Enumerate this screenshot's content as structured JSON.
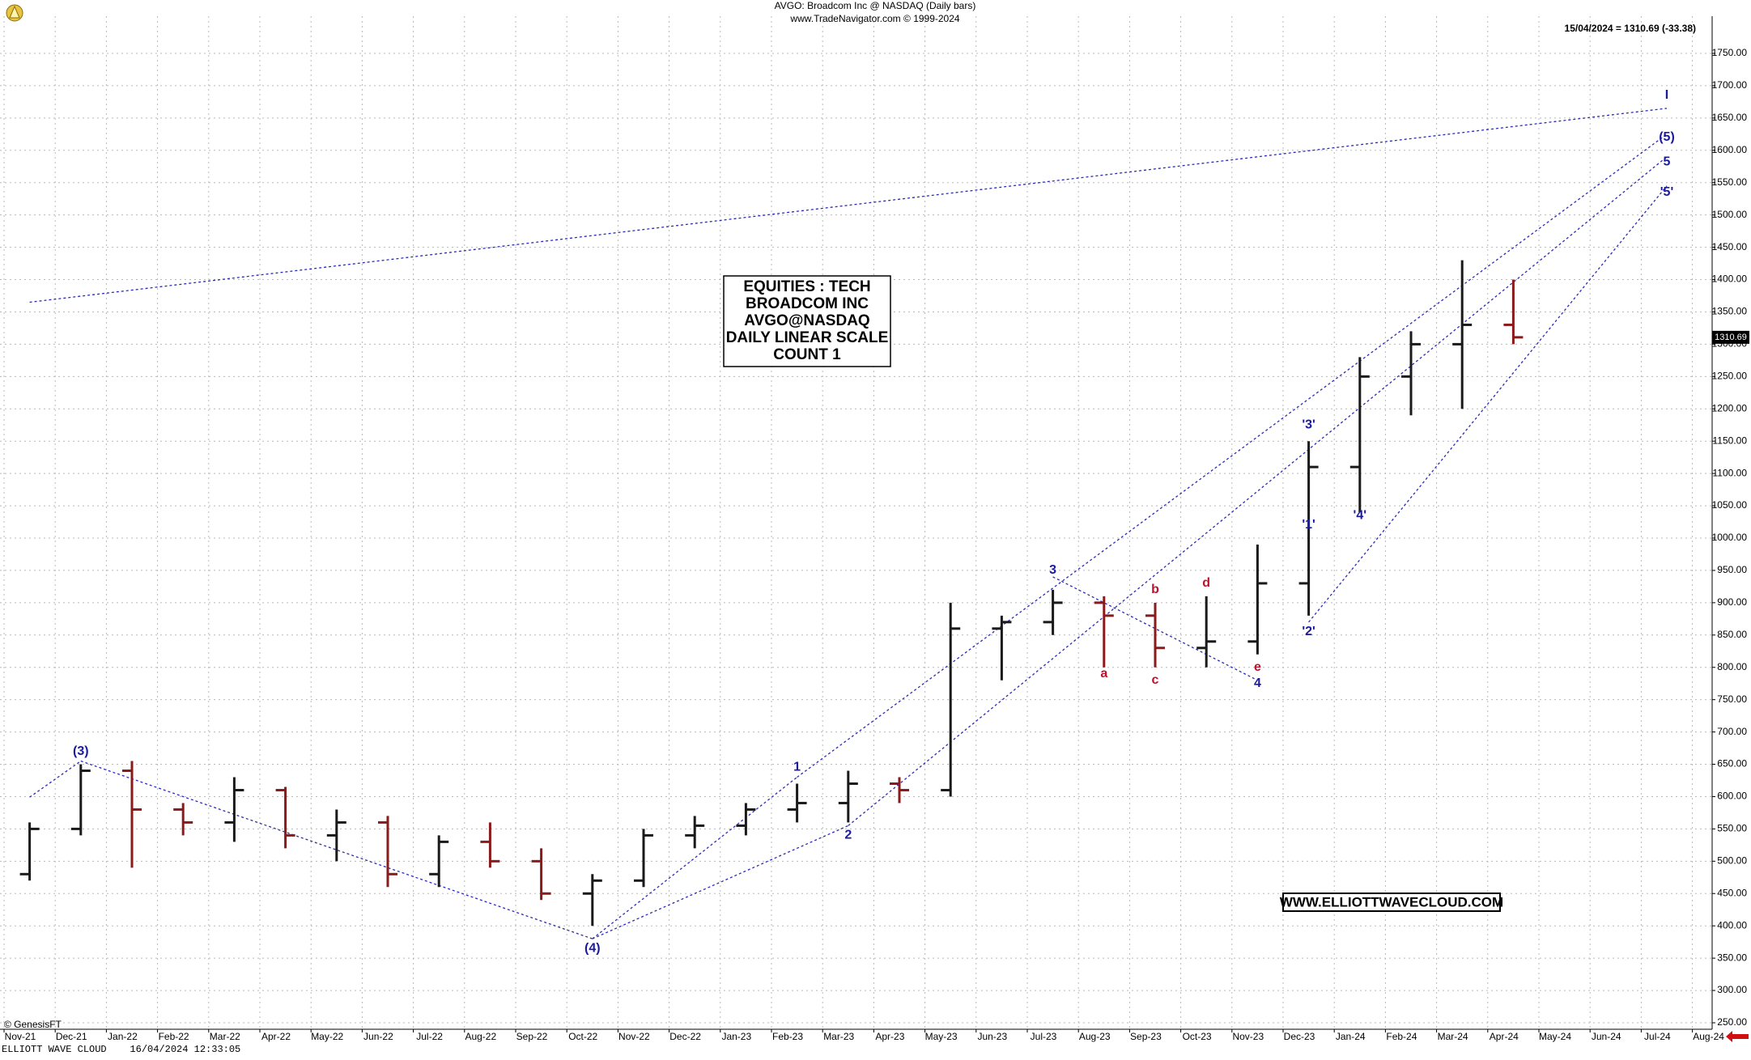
{
  "chart_data": {
    "type": "ohlc",
    "title": "AVGO:  Broadcom Inc @ NASDAQ  (Daily bars)",
    "subtitle": "www.TradeNavigator.com © 1999-2024",
    "last_quote": "15/04/2024 = 1310.69 (-33.38)",
    "last_price_label": "1310.69",
    "info_box": [
      "EQUITIES : TECH",
      "BROADCOM INC",
      "AVGO@NASDAQ",
      "DAILY LINEAR SCALE",
      "COUNT 1"
    ],
    "website": "WWW.ELLIOTTWAVECLOUD.COM",
    "copyright": "© GenesisFT",
    "footer": "ELLIOTT WAVE CLOUD    16/04/2024 12:33:05",
    "categories": [
      "Nov-21",
      "Dec-21",
      "Jan-22",
      "Feb-22",
      "Mar-22",
      "Apr-22",
      "May-22",
      "Jun-22",
      "Jul-22",
      "Aug-22",
      "Sep-22",
      "Oct-22",
      "Nov-22",
      "Dec-22",
      "Jan-23",
      "Feb-23",
      "Mar-23",
      "Apr-23",
      "May-23",
      "Jun-23",
      "Jul-23",
      "Aug-23",
      "Sep-23",
      "Oct-23",
      "Nov-23",
      "Dec-23",
      "Jan-24",
      "Feb-24",
      "Mar-24",
      "Apr-24",
      "May-24",
      "Jun-24",
      "Jul-24",
      "Aug-24"
    ],
    "open": [
      480,
      550,
      640,
      580,
      560,
      610,
      540,
      560,
      480,
      530,
      500,
      450,
      470,
      540,
      555,
      580,
      590,
      620,
      610,
      860,
      870,
      900,
      880,
      830,
      840,
      930,
      1110,
      1250,
      1300,
      1330,
      null,
      null,
      null,
      null
    ],
    "high": [
      560,
      650,
      655,
      590,
      630,
      615,
      580,
      570,
      540,
      560,
      520,
      480,
      550,
      570,
      590,
      620,
      640,
      630,
      900,
      880,
      920,
      910,
      900,
      910,
      990,
      1150,
      1280,
      1320,
      1430,
      1400,
      null,
      null,
      null,
      null
    ],
    "low": [
      470,
      540,
      490,
      540,
      530,
      520,
      500,
      460,
      460,
      490,
      440,
      400,
      460,
      520,
      540,
      560,
      560,
      590,
      600,
      780,
      850,
      800,
      800,
      800,
      820,
      880,
      1040,
      1190,
      1200,
      1300,
      null,
      null,
      null,
      null
    ],
    "close": [
      550,
      640,
      580,
      560,
      610,
      540,
      560,
      480,
      530,
      500,
      450,
      470,
      540,
      555,
      580,
      590,
      620,
      610,
      860,
      870,
      900,
      880,
      830,
      840,
      930,
      1110,
      1250,
      1300,
      1330,
      1310.69,
      null,
      null,
      null,
      null
    ],
    "up_color": "#1a1a1a",
    "down_color": "#8b1a1a",
    "ylim": [
      250,
      1750
    ],
    "yticks": [
      {
        "value": 250,
        "label": "250.00"
      },
      {
        "value": 300,
        "label": "300.00"
      },
      {
        "value": 350,
        "label": "350.00"
      },
      {
        "value": 400,
        "label": "400.00"
      },
      {
        "value": 450,
        "label": "450.00"
      },
      {
        "value": 500,
        "label": "500.00"
      },
      {
        "value": 550,
        "label": "550.00"
      },
      {
        "value": 600,
        "label": "600.00"
      },
      {
        "value": 650,
        "label": "650.00"
      },
      {
        "value": 700,
        "label": "700.00"
      },
      {
        "value": 750,
        "label": "750.00"
      },
      {
        "value": 800,
        "label": "800.00"
      },
      {
        "value": 850,
        "label": "850.00"
      },
      {
        "value": 900,
        "label": "900.00"
      },
      {
        "value": 950,
        "label": "950.00"
      },
      {
        "value": 1000,
        "label": "1000.00"
      },
      {
        "value": 1050,
        "label": "1050.00"
      },
      {
        "value": 1100,
        "label": "1100.00"
      },
      {
        "value": 1150,
        "label": "1150.00"
      },
      {
        "value": 1200,
        "label": "1200.00"
      },
      {
        "value": 1250,
        "label": "1250.00"
      },
      {
        "value": 1300,
        "label": "1300.00"
      },
      {
        "value": 1350,
        "label": "1350.00"
      },
      {
        "value": 1400,
        "label": "1400.00"
      },
      {
        "value": 1450,
        "label": "1450.00"
      },
      {
        "value": 1500,
        "label": "1500.00"
      },
      {
        "value": 1550,
        "label": "1550.00"
      },
      {
        "value": 1600,
        "label": "1600.00"
      },
      {
        "value": 1650,
        "label": "1650.00"
      },
      {
        "value": 1700,
        "label": "1700.00"
      },
      {
        "value": 1750,
        "label": "1750.00"
      }
    ],
    "grid": true,
    "trend_color": "#2a2ab8",
    "trendlines": [
      {
        "from": "Nov-21",
        "from_price": 1365,
        "to": "Jul-24",
        "to_price": 1665
      },
      {
        "from": "Nov-21",
        "from_price": 599,
        "to": "Dec-21",
        "to_price": 655
      },
      {
        "from": "Dec-21",
        "from_price": 655,
        "to": "Oct-22",
        "to_price": 380
      },
      {
        "from": "Oct-22",
        "from_price": 380,
        "to": "Feb-23",
        "to_price": 630
      },
      {
        "from": "Oct-22",
        "from_price": 380,
        "to": "Mar-23",
        "to_price": 555
      },
      {
        "from": "Feb-23",
        "from_price": 630,
        "to": "Jul-24",
        "to_price": 1625
      },
      {
        "from": "Mar-23",
        "from_price": 555,
        "to": "Jul-24",
        "to_price": 1590
      },
      {
        "from": "Jul-23",
        "from_price": 940,
        "to": "Nov-23",
        "to_price": 780
      },
      {
        "from": "Dec-23",
        "from_price": 870,
        "to": "Jul-24",
        "to_price": 1545
      }
    ],
    "annotations": [
      {
        "text": "(3)",
        "color": "#1a1aa0",
        "at": "Dec-21",
        "price": 670
      },
      {
        "text": "(4)",
        "color": "#1a1aa0",
        "at": "Oct-22",
        "price": 365
      },
      {
        "text": "1",
        "color": "#1a1aa0",
        "at": "Feb-23",
        "price": 645
      },
      {
        "text": "2",
        "color": "#1a1aa0",
        "at": "Mar-23",
        "price": 540
      },
      {
        "text": "3",
        "color": "#1a1aa0",
        "at": "Jul-23",
        "price": 950
      },
      {
        "text": "a",
        "color": "#c0102a",
        "at": "Aug-23",
        "price": 790
      },
      {
        "text": "b",
        "color": "#c0102a",
        "at": "Sep-23",
        "price": 920
      },
      {
        "text": "c",
        "color": "#c0102a",
        "at": "Sep-23",
        "price": 780
      },
      {
        "text": "d",
        "color": "#c0102a",
        "at": "Oct-23",
        "price": 930
      },
      {
        "text": "e",
        "color": "#c0102a",
        "at": "Nov-23",
        "price": 800
      },
      {
        "text": "4",
        "color": "#1a1aa0",
        "at": "Nov-23",
        "price": 775
      },
      {
        "text": "'1'",
        "color": "#1a1aa0",
        "at": "Dec-23",
        "price": 1020
      },
      {
        "text": "'2'",
        "color": "#1a1aa0",
        "at": "Dec-23",
        "price": 855
      },
      {
        "text": "'3'",
        "color": "#1a1aa0",
        "at": "Dec-23",
        "price": 1175
      },
      {
        "text": "'4'",
        "color": "#1a1aa0",
        "at": "Jan-24",
        "price": 1035
      },
      {
        "text": "I",
        "color": "#1a1aa0",
        "at": "Jul-24",
        "price": 1685
      },
      {
        "text": "(5)",
        "color": "#1a1aa0",
        "at": "Jul-24",
        "price": 1620
      },
      {
        "text": "5",
        "color": "#1a1aa0",
        "at": "Jul-24",
        "price": 1582
      },
      {
        "text": "'5'",
        "color": "#1a1aa0",
        "at": "Jul-24",
        "price": 1535
      }
    ]
  }
}
